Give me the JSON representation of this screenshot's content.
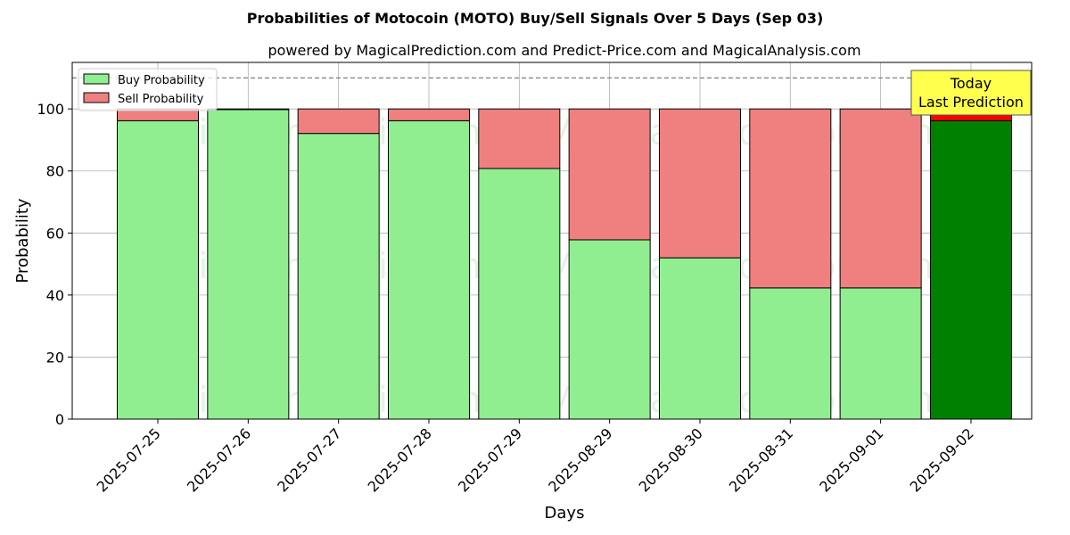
{
  "chart_data": {
    "type": "bar",
    "stacked": true,
    "title": "Probabilities of Motocoin (MOTO) Buy/Sell Signals Over 5 Days (Sep 03)",
    "subtitle": "powered by MagicalPrediction.com and Predict-Price.com and MagicalAnalysis.com",
    "xlabel": "Days",
    "ylabel": "Probability",
    "ylim": [
      0,
      115
    ],
    "yticks": [
      0,
      20,
      40,
      60,
      80,
      100
    ],
    "grid": true,
    "legend_position": "top-left",
    "categories": [
      "2025-07-25",
      "2025-07-26",
      "2025-07-27",
      "2025-07-28",
      "2025-07-29",
      "2025-08-29",
      "2025-08-30",
      "2025-08-31",
      "2025-09-01",
      "2025-09-02"
    ],
    "series": [
      {
        "name": "Buy Probability",
        "color": "#90ee90",
        "highlight_color": "#008000",
        "values": [
          96.2,
          99.8,
          92.1,
          96.2,
          80.8,
          57.8,
          52.0,
          42.3,
          42.3,
          96.2
        ]
      },
      {
        "name": "Sell Probability",
        "color": "#f08080",
        "highlight_color": "#ff0000",
        "values": [
          3.8,
          0.2,
          7.9,
          3.8,
          19.2,
          42.2,
          48.0,
          57.7,
          57.7,
          3.8
        ]
      }
    ],
    "highlight_index": 9,
    "reference_line": {
      "y": 110,
      "style": "dashed",
      "color": "#808080"
    },
    "annotation": {
      "lines": [
        "Today",
        "Last Prediction"
      ],
      "background": "#ffff4d"
    },
    "watermarks": [
      "MagicalAnalysis.com",
      "MagicalPrediction.com"
    ]
  }
}
